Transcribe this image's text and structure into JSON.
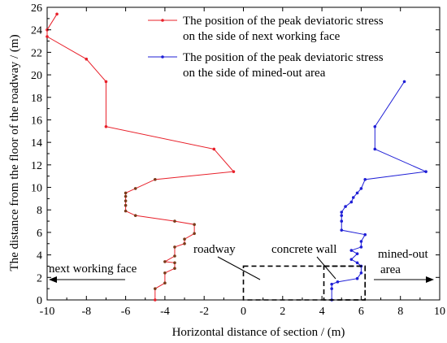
{
  "colors": {
    "series_next_face": "#e8202a",
    "series_mined_out": "#1f1fd6",
    "axis": "#000000",
    "inner_points_next_face": "#7a3b1a"
  },
  "chart_data": {
    "type": "line",
    "title": "",
    "xlabel": "Horizontal distance of section / (m)",
    "ylabel": "The distance from the floor of the roadway / (m)",
    "xlim": [
      -10,
      10
    ],
    "ylim": [
      0,
      26
    ],
    "xticks": [
      -10,
      -8,
      -6,
      -4,
      -2,
      0,
      2,
      4,
      6,
      8,
      10
    ],
    "yticks": [
      0,
      2,
      4,
      6,
      8,
      10,
      12,
      14,
      16,
      18,
      20,
      22,
      24,
      26
    ],
    "legend_position": "top-right",
    "series": [
      {
        "name": "The position of the peak deviatoric stress on the side of next working face",
        "legend_lines": [
          "The position of the peak deviatoric stress",
          "on the side of next working face"
        ],
        "color": "#e8202a",
        "points": [
          [
            -4.5,
            0
          ],
          [
            -4.5,
            1.0
          ],
          [
            -4.0,
            1.5
          ],
          [
            -4.0,
            2.4
          ],
          [
            -3.5,
            2.8
          ],
          [
            -3.5,
            3.3
          ],
          [
            -4.0,
            3.4
          ],
          [
            -3.5,
            3.9
          ],
          [
            -3.5,
            4.7
          ],
          [
            -3.0,
            5.0
          ],
          [
            -3.0,
            5.4
          ],
          [
            -2.5,
            5.9
          ],
          [
            -2.5,
            6.7
          ],
          [
            -3.5,
            7.0
          ],
          [
            -5.5,
            7.5
          ],
          [
            -6.0,
            7.9
          ],
          [
            -6.0,
            8.4
          ],
          [
            -6.0,
            8.8
          ],
          [
            -6.0,
            9.2
          ],
          [
            -6.0,
            9.5
          ],
          [
            -5.5,
            9.9
          ],
          [
            -4.5,
            10.7
          ],
          [
            -0.5,
            11.4
          ],
          [
            -1.5,
            13.4
          ],
          [
            -7.0,
            15.4
          ],
          [
            -7.0,
            19.4
          ],
          [
            -8.0,
            21.4
          ],
          [
            -10.0,
            23.4
          ],
          [
            -10.0,
            24.0
          ],
          [
            -9.5,
            25.4
          ]
        ]
      },
      {
        "name": "The position of the peak deviatoric stress on the side of mined-out area",
        "legend_lines": [
          "The position of the peak deviatoric stress",
          "on the side of mined-out area"
        ],
        "color": "#1f1fd6",
        "points": [
          [
            4.5,
            0
          ],
          [
            4.5,
            1.0
          ],
          [
            4.5,
            1.4
          ],
          [
            4.8,
            1.6
          ],
          [
            5.8,
            1.9
          ],
          [
            6.0,
            2.4
          ],
          [
            6.0,
            3.0
          ],
          [
            5.8,
            3.3
          ],
          [
            5.5,
            3.6
          ],
          [
            5.8,
            4.1
          ],
          [
            5.5,
            4.4
          ],
          [
            6.0,
            4.7
          ],
          [
            6.0,
            5.2
          ],
          [
            6.2,
            5.8
          ],
          [
            5.0,
            6.2
          ],
          [
            5.0,
            7.0
          ],
          [
            5.0,
            7.5
          ],
          [
            5.0,
            7.8
          ],
          [
            5.2,
            8.3
          ],
          [
            5.5,
            8.7
          ],
          [
            5.6,
            9.1
          ],
          [
            5.8,
            9.5
          ],
          [
            6.0,
            9.9
          ],
          [
            6.2,
            10.7
          ],
          [
            9.3,
            11.4
          ],
          [
            6.7,
            13.4
          ],
          [
            6.7,
            15.4
          ],
          [
            8.2,
            19.4
          ]
        ]
      }
    ],
    "roadway_box": {
      "x": [
        0,
        6.2
      ],
      "y": [
        0,
        3.0
      ]
    },
    "concrete_wall_box": {
      "x": [
        4.1,
        6.2
      ],
      "y": [
        0,
        3.0
      ]
    },
    "annotations": {
      "roadway": "roadway",
      "concrete_wall": "concrete wall",
      "mined_out_line1": "mined-out",
      "mined_out_line2": "area",
      "next_working_face": "next working face"
    }
  }
}
